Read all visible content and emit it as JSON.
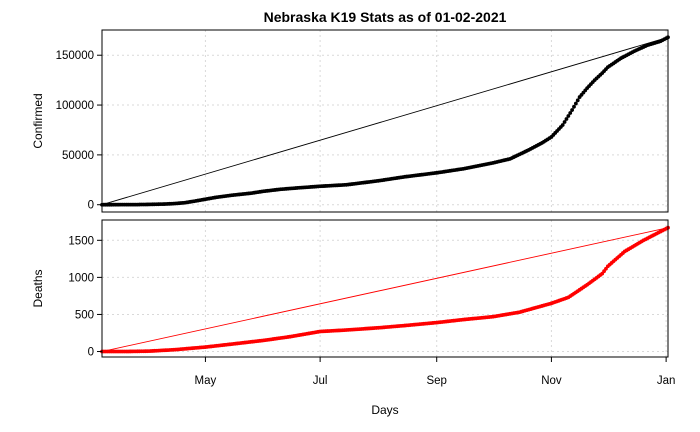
{
  "chart_data": {
    "type": "scatter",
    "title": "Nebraska K19 Stats as of 01-02-2021",
    "xlabel": "Days",
    "x_tick_labels": [
      "May",
      "Jul",
      "Sep",
      "Nov",
      "Jan"
    ],
    "x_ticks": [
      "2020-05-01",
      "2020-07-01",
      "2020-09-01",
      "2020-11-01",
      "2021-01-01"
    ],
    "xlim": [
      "2020-03-07",
      "2021-01-02"
    ],
    "grid": true,
    "panels": [
      {
        "name": "confirmed",
        "ylabel": "Confirmed",
        "color": "#000000",
        "ylim": [
          0,
          168000
        ],
        "y_ticks": [
          0,
          50000,
          100000,
          150000
        ],
        "y_tick_labels": [
          "0",
          "50000",
          "100000",
          "150000"
        ],
        "reference_line": {
          "from": [
            "2020-03-07",
            0
          ],
          "to": [
            "2021-01-02",
            168000
          ]
        },
        "points": [
          [
            "2020-03-07",
            0
          ],
          [
            "2020-03-15",
            50
          ],
          [
            "2020-03-25",
            100
          ],
          [
            "2020-04-01",
            300
          ],
          [
            "2020-04-10",
            700
          ],
          [
            "2020-04-15",
            1200
          ],
          [
            "2020-04-20",
            2000
          ],
          [
            "2020-04-25",
            3500
          ],
          [
            "2020-05-01",
            5500
          ],
          [
            "2020-05-07",
            7500
          ],
          [
            "2020-05-15",
            9500
          ],
          [
            "2020-05-25",
            11500
          ],
          [
            "2020-06-01",
            13500
          ],
          [
            "2020-06-10",
            15500
          ],
          [
            "2020-06-20",
            17000
          ],
          [
            "2020-07-01",
            18500
          ],
          [
            "2020-07-15",
            20000
          ],
          [
            "2020-08-01",
            24000
          ],
          [
            "2020-08-15",
            28000
          ],
          [
            "2020-09-01",
            32000
          ],
          [
            "2020-09-15",
            36000
          ],
          [
            "2020-10-01",
            42000
          ],
          [
            "2020-10-10",
            46000
          ],
          [
            "2020-10-20",
            55000
          ],
          [
            "2020-10-27",
            62000
          ],
          [
            "2020-11-01",
            68000
          ],
          [
            "2020-11-07",
            80000
          ],
          [
            "2020-11-12",
            95000
          ],
          [
            "2020-11-16",
            108000
          ],
          [
            "2020-11-20",
            117000
          ],
          [
            "2020-11-24",
            125000
          ],
          [
            "2020-11-28",
            132000
          ],
          [
            "2020-12-01",
            138000
          ],
          [
            "2020-12-08",
            147000
          ],
          [
            "2020-12-15",
            154000
          ],
          [
            "2020-12-22",
            160000
          ],
          [
            "2020-12-29",
            164000
          ],
          [
            "2021-01-02",
            168000
          ]
        ]
      },
      {
        "name": "deaths",
        "ylabel": "Deaths",
        "color": "#ff0000",
        "ylim": [
          0,
          1700
        ],
        "y_ticks": [
          0,
          500,
          1000,
          1500
        ],
        "y_tick_labels": [
          "0",
          "500",
          "1000",
          "1500"
        ],
        "reference_line": {
          "from": [
            "2020-03-07",
            0
          ],
          "to": [
            "2021-01-02",
            1670
          ]
        },
        "points": [
          [
            "2020-03-07",
            0
          ],
          [
            "2020-03-20",
            0
          ],
          [
            "2020-04-01",
            5
          ],
          [
            "2020-04-15",
            25
          ],
          [
            "2020-05-01",
            60
          ],
          [
            "2020-05-15",
            100
          ],
          [
            "2020-06-01",
            150
          ],
          [
            "2020-06-15",
            200
          ],
          [
            "2020-07-01",
            270
          ],
          [
            "2020-07-15",
            290
          ],
          [
            "2020-08-01",
            320
          ],
          [
            "2020-08-15",
            350
          ],
          [
            "2020-09-01",
            390
          ],
          [
            "2020-09-15",
            430
          ],
          [
            "2020-10-01",
            470
          ],
          [
            "2020-10-15",
            530
          ],
          [
            "2020-11-01",
            650
          ],
          [
            "2020-11-10",
            730
          ],
          [
            "2020-11-20",
            900
          ],
          [
            "2020-11-28",
            1050
          ],
          [
            "2020-12-01",
            1150
          ],
          [
            "2020-12-10",
            1350
          ],
          [
            "2020-12-20",
            1500
          ],
          [
            "2021-01-02",
            1670
          ]
        ]
      }
    ]
  }
}
